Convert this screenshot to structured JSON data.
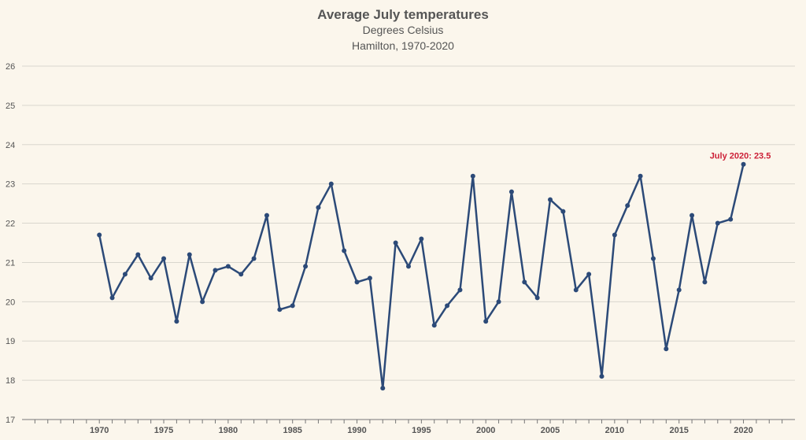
{
  "chart_data": {
    "type": "line",
    "title": "Average July temperatures",
    "subtitle": "Degrees Celsius",
    "subtitle2": "Hamilton, 1970-2020",
    "xlabel": "",
    "ylabel": "",
    "xlim": [
      1964,
      2024
    ],
    "ylim": [
      17,
      26
    ],
    "yticks": [
      17,
      18,
      19,
      20,
      21,
      22,
      23,
      24,
      25,
      26
    ],
    "xticks": [
      1970,
      1975,
      1980,
      1985,
      1990,
      1995,
      2000,
      2005,
      2010,
      2015,
      2020
    ],
    "grid": true,
    "color": "#2c4a78",
    "annotation_color": "#cc1f36",
    "series": [
      {
        "x": [
          1970,
          1971,
          1972,
          1973,
          1974,
          1975,
          1976,
          1977,
          1978,
          1979,
          1980,
          1981,
          1982,
          1983,
          1984,
          1985,
          1986,
          1987,
          1988,
          1989,
          1990,
          1991,
          1992,
          1993,
          1994,
          1995,
          1996,
          1997,
          1998,
          1999,
          2000,
          2001,
          2002,
          2003,
          2004,
          2005,
          2006,
          2007,
          2008,
          2009,
          2010,
          2011,
          2012,
          2013,
          2014,
          2015,
          2016,
          2017,
          2018,
          2019,
          2020
        ],
        "values": [
          21.7,
          20.1,
          20.7,
          21.2,
          20.6,
          21.1,
          19.5,
          21.2,
          20.0,
          20.8,
          20.9,
          20.7,
          21.1,
          22.2,
          19.8,
          19.9,
          20.9,
          22.4,
          23.0,
          21.3,
          20.5,
          20.6,
          17.8,
          21.5,
          20.9,
          21.6,
          19.4,
          19.9,
          20.3,
          23.2,
          19.5,
          20.0,
          22.8,
          20.5,
          20.1,
          22.6,
          22.3,
          20.3,
          20.7,
          18.1,
          21.7,
          22.45,
          23.2,
          21.1,
          18.8,
          20.3,
          22.2,
          20.5,
          22.0,
          22.1,
          23.5
        ]
      }
    ],
    "annotation": {
      "x": 2020,
      "y": 23.5,
      "text": "July 2020: 23.5"
    }
  }
}
